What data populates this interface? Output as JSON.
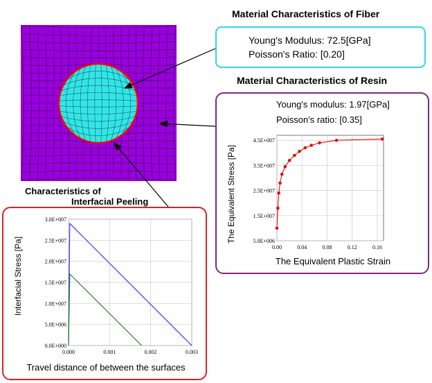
{
  "fiber": {
    "title": "Material Characteristics of Fiber",
    "youngs": "Young's Modulus: 72.5[GPa]",
    "poisson": "Poisson's Ratio: [0.20]",
    "box_color": "#33d6e6"
  },
  "resin": {
    "title": "Material Characteristics of Resin",
    "youngs": "Young's modulus: 1.97[GPa]",
    "poisson": "Poisson's ratio: [0.35]",
    "box_color": "#7a2a7a"
  },
  "peeling": {
    "title_line1": "Characteristics of",
    "title_line2": "Interfacial Peeling",
    "box_color": "#e02020"
  },
  "mesh": {
    "matrix_color": "#9900dd",
    "fiber_color": "#33e6e6",
    "interface_color": "#ff0000"
  },
  "chart_data": [
    {
      "type": "line",
      "title": "",
      "xlabel": "The Equivalent Plastic Strain",
      "ylabel": "The Equivalent Stress [Pa]",
      "xlim": [
        0,
        0.17
      ],
      "ylim": [
        5000000,
        47000000
      ],
      "xticks": [
        "0.00",
        "0.04",
        "0.08",
        "0.12",
        "0.16"
      ],
      "xtick_values": [
        0,
        0.04,
        0.08,
        0.12,
        0.16
      ],
      "yticks": [
        "5.0E+006",
        "1.5E+007",
        "2.5E+007",
        "3.5E+007",
        "4.5E+007"
      ],
      "ytick_values": [
        5000000,
        15000000,
        25000000,
        35000000,
        45000000
      ],
      "series": [
        {
          "color": "#e01010",
          "x": [
            0,
            0.0015,
            0.003,
            0.005,
            0.008,
            0.013,
            0.02,
            0.028,
            0.036,
            0.045,
            0.055,
            0.068,
            0.095,
            0.168
          ],
          "y": [
            10000000,
            18000000,
            24000000,
            28000000,
            31500000,
            34500000,
            37000000,
            39000000,
            40600000,
            42000000,
            43000000,
            44000000,
            45000000,
            45500000
          ]
        }
      ]
    },
    {
      "type": "line",
      "title": "",
      "xlabel": "Travel distance of between the surfaces",
      "ylabel": "Interfacial Stress [Pa]",
      "xlim": [
        0,
        0.003
      ],
      "ylim": [
        0,
        30000000
      ],
      "xticks": [
        "0.000",
        "0.001",
        "0.002",
        "0.003"
      ],
      "xtick_values": [
        0,
        0.001,
        0.002,
        0.003
      ],
      "yticks": [
        "0.0E+000",
        "5.0E+006",
        "1.0E+007",
        "1.5E+007",
        "2.0E+007",
        "2.5E+007",
        "3.0E+007"
      ],
      "ytick_values": [
        0,
        5000000,
        10000000,
        15000000,
        20000000,
        25000000,
        30000000
      ],
      "series": [
        {
          "color": "#2a2aff",
          "x": [
            0,
            3e-05,
            0.003
          ],
          "y": [
            0,
            29000000,
            0
          ]
        },
        {
          "color": "#1a7a1a",
          "x": [
            0,
            3e-05,
            0.00178
          ],
          "y": [
            0,
            17000000,
            0
          ]
        }
      ]
    }
  ]
}
